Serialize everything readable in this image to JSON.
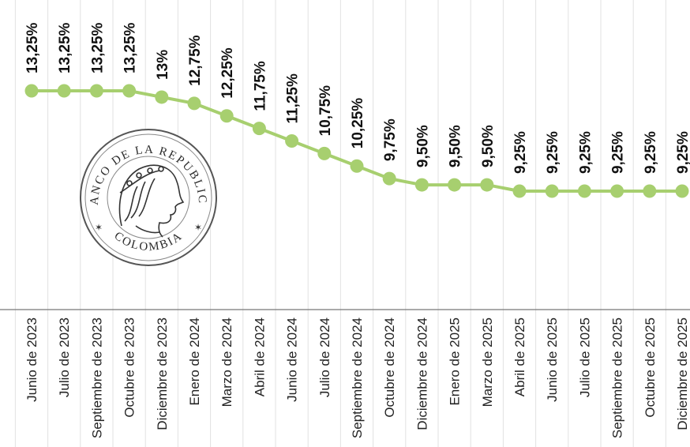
{
  "chart_data": {
    "type": "line",
    "title": "",
    "xlabel": "",
    "ylabel": "",
    "ylim": [
      9.0,
      13.5
    ],
    "grid": "vertical",
    "color": "#a7cf6f",
    "categories": [
      "Junio de 2023",
      "Julio de 2023",
      "Septiembre de 2023",
      "Octubre de 2023",
      "Diciembre de 2023",
      "Enero de 2024",
      "Marzo de 2024",
      "Abril de 2024",
      "Junio de 2024",
      "Julio de 2024",
      "Septiembre de 2024",
      "Octubre de 2024",
      "Diciembre de 2024",
      "Enero de 2025",
      "Marzo de 2025",
      "Abril de 2025",
      "Junio de 2025",
      "Julio de 2025",
      "Septiembre de 2025",
      "Octubre de 2025",
      "Diciembre de 2025"
    ],
    "values": [
      13.25,
      13.25,
      13.25,
      13.25,
      13.0,
      12.75,
      12.25,
      11.75,
      11.25,
      10.75,
      10.25,
      9.75,
      9.5,
      9.5,
      9.5,
      9.25,
      9.25,
      9.25,
      9.25,
      9.25,
      9.25
    ],
    "value_labels": [
      "13,25%",
      "13,25%",
      "13,25%",
      "13,25%",
      "13%",
      "12,75%",
      "12,25%",
      "11,75%",
      "11,25%",
      "10,75%",
      "10,25%",
      "9,75%",
      "9,50%",
      "9,50%",
      "9,50%",
      "9,25%",
      "9,25%",
      "9,25%",
      "9,25%",
      "9,25%",
      "9,25%"
    ]
  },
  "seal": {
    "top_text": "BANCO DE LA REPUBLICA",
    "bottom_text": "COLOMBIA"
  }
}
